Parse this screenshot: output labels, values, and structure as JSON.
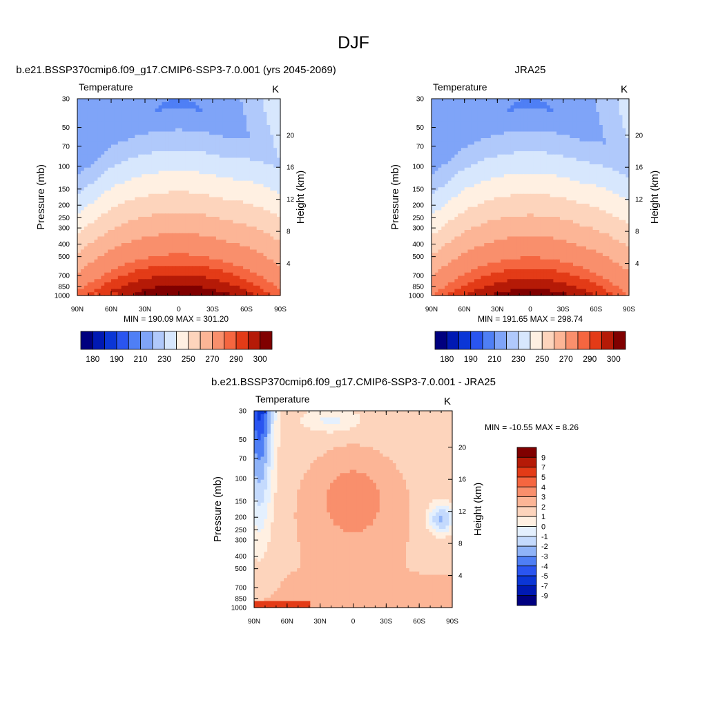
{
  "figure": {
    "title": "DJF"
  },
  "colors": {
    "abs_palette": [
      "#00007f",
      "#0019b3",
      "#0b36d6",
      "#2a55f0",
      "#4f7ff5",
      "#7fa4f8",
      "#b0c9fb",
      "#d7e7fd",
      "#fff0e2",
      "#fdd4bc",
      "#fcb596",
      "#f98f6c",
      "#f56640",
      "#e33b17",
      "#b51a07",
      "#800000"
    ],
    "diff_palette": [
      "#000080",
      "#0019b3",
      "#0b36d6",
      "#2a55f0",
      "#4f7ff5",
      "#8fb3f8",
      "#c4dafd",
      "#e4f0fe",
      "#fff0e2",
      "#fdd4bc",
      "#fcb596",
      "#f98f6c",
      "#f56640",
      "#e33b17",
      "#b51a07",
      "#800000"
    ]
  },
  "chart_data": [
    {
      "type": "heatmap",
      "title": "b.e21.BSSP370cmip6.f09_g17.CMIP6-SSP3-7.0.001 (yrs 2045-2069)",
      "left_label": "Temperature",
      "units": "K",
      "ylabel": "Pressure (mb)",
      "ylabel_right": "Height (km)",
      "x_ticks": [
        "90N",
        "60N",
        "30N",
        "0",
        "30S",
        "60S",
        "90S"
      ],
      "y_ticks": [
        30,
        50,
        70,
        100,
        150,
        200,
        250,
        300,
        400,
        500,
        700,
        850,
        1000
      ],
      "y_right_ticks": [
        20,
        16,
        12,
        8,
        4
      ],
      "y_scale": "log",
      "xlim": [
        "90N",
        "90S"
      ],
      "ylim": [
        1000,
        30
      ],
      "stats": "MIN = 190.09  MAX = 301.20",
      "min": 190.09,
      "max": 301.2,
      "colorbar_labels": [
        "180",
        "190",
        "210",
        "230",
        "250",
        "270",
        "290",
        "300"
      ],
      "contour_levels": [
        180,
        185,
        190,
        200,
        210,
        220,
        230,
        240,
        250,
        260,
        270,
        280,
        285,
        290,
        295,
        300
      ]
    },
    {
      "type": "heatmap",
      "title": "JRA25",
      "left_label": "Temperature",
      "units": "K",
      "ylabel": "Pressure (mb)",
      "ylabel_right": "Height (km)",
      "x_ticks": [
        "90N",
        "60N",
        "30N",
        "0",
        "30S",
        "60S",
        "90S"
      ],
      "y_ticks": [
        30,
        50,
        70,
        100,
        150,
        200,
        250,
        300,
        400,
        500,
        700,
        850,
        1000
      ],
      "y_right_ticks": [
        20,
        16,
        12,
        8,
        4
      ],
      "y_scale": "log",
      "xlim": [
        "90N",
        "90S"
      ],
      "ylim": [
        1000,
        30
      ],
      "stats": "MIN = 191.65  MAX = 298.74",
      "min": 191.65,
      "max": 298.74,
      "colorbar_labels": [
        "180",
        "190",
        "210",
        "230",
        "250",
        "270",
        "290",
        "300"
      ],
      "contour_levels": [
        180,
        185,
        190,
        200,
        210,
        220,
        230,
        240,
        250,
        260,
        270,
        280,
        285,
        290,
        295,
        300
      ]
    },
    {
      "type": "heatmap",
      "title": "b.e21.BSSP370cmip6.f09_g17.CMIP6-SSP3-7.0.001 - JRA25",
      "left_label": "Temperature",
      "units": "K",
      "ylabel": "Pressure (mb)",
      "ylabel_right": "Height (km)",
      "x_ticks": [
        "90N",
        "60N",
        "30N",
        "0",
        "30S",
        "60S",
        "90S"
      ],
      "y_ticks": [
        30,
        50,
        70,
        100,
        150,
        200,
        250,
        300,
        400,
        500,
        700,
        850,
        1000
      ],
      "y_right_ticks": [
        20,
        16,
        12,
        8,
        4
      ],
      "y_scale": "log",
      "xlim": [
        "90N",
        "90S"
      ],
      "ylim": [
        1000,
        30
      ],
      "stats": "MIN = -10.55  MAX =   8.26",
      "min": -10.55,
      "max": 8.26,
      "colorbar_labels": [
        "9",
        "7",
        "5",
        "4",
        "3",
        "2",
        "1",
        "0",
        "-1",
        "-2",
        "-3",
        "-4",
        "-5",
        "-7",
        "-9"
      ],
      "contour_levels": [
        -9,
        -7,
        -5,
        -4,
        -3,
        -2,
        -1,
        0,
        1,
        2,
        3,
        4,
        5,
        7,
        9
      ]
    }
  ]
}
